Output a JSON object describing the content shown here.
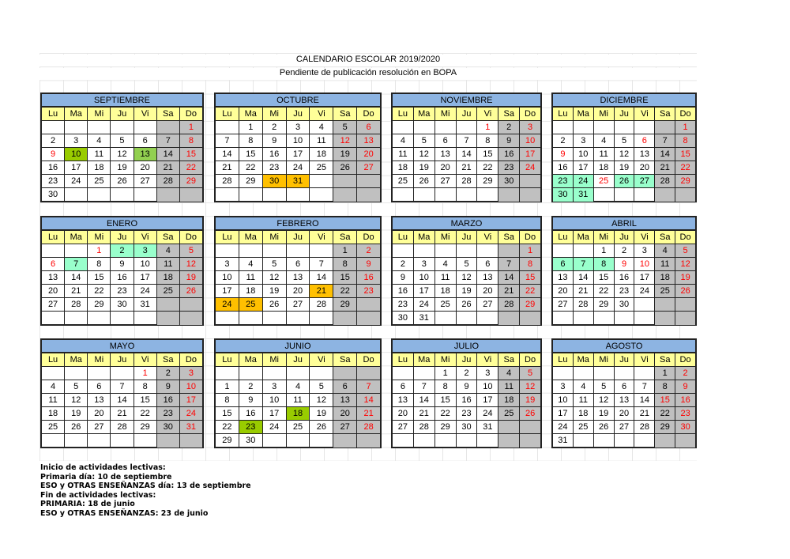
{
  "title": "CALENDARIO ESCOLAR 2019/2020",
  "subtitle": "Pendiente de publicación resolución en BOPA",
  "weekdays": [
    "Lu",
    "Ma",
    "Mi",
    "Ju",
    "Vi",
    "Sa",
    "Do"
  ],
  "colors": {
    "header": "#8db4e2",
    "weekday_row": "#ffff99",
    "weekend": "#c0c0c0",
    "holiday_text": "#ff0000",
    "start_primaria": "#99cc00",
    "start_eso": "#92d050",
    "vacation": "#99ffcc",
    "non_teaching": "#ffc000"
  },
  "months": [
    {
      "name": "SEPTIEMBRE",
      "offset": 6,
      "days": 30,
      "red": [
        1,
        8,
        9,
        15,
        22,
        29
      ],
      "marks": {
        "10": "start_primaria",
        "13": "start_eso"
      }
    },
    {
      "name": "OCTUBRE",
      "offset": 1,
      "days": 31,
      "red": [
        6,
        12,
        13,
        20,
        27
      ],
      "marks": {
        "30": "non_teaching",
        "31": "non_teaching"
      }
    },
    {
      "name": "NOVIEMBRE",
      "offset": 4,
      "days": 30,
      "red": [
        1,
        3,
        10,
        17,
        24
      ],
      "marks": {}
    },
    {
      "name": "DICIEMBRE",
      "offset": 6,
      "days": 31,
      "red": [
        1,
        6,
        8,
        9,
        15,
        22,
        25,
        29
      ],
      "marks": {
        "23": "vacation",
        "24": "vacation",
        "26": "vacation",
        "27": "vacation",
        "30": "vacation",
        "31": "vacation"
      }
    },
    {
      "name": "ENERO",
      "offset": 2,
      "days": 31,
      "red": [
        1,
        5,
        6,
        12,
        19,
        26
      ],
      "marks": {
        "2": "vacation",
        "3": "vacation",
        "7": "vacation"
      }
    },
    {
      "name": "FEBRERO",
      "offset": 5,
      "days": 29,
      "red": [
        2,
        9,
        16,
        23
      ],
      "marks": {
        "21": "non_teaching",
        "24": "non_teaching",
        "25": "non_teaching"
      }
    },
    {
      "name": "MARZO",
      "offset": 6,
      "days": 31,
      "red": [
        1,
        8,
        15,
        22,
        29
      ],
      "marks": {}
    },
    {
      "name": "ABRIL",
      "offset": 2,
      "days": 30,
      "red": [
        5,
        9,
        10,
        12,
        19,
        26
      ],
      "marks": {
        "6": "vacation",
        "7": "vacation",
        "8": "vacation"
      }
    },
    {
      "name": "MAYO",
      "offset": 4,
      "days": 31,
      "red": [
        1,
        3,
        10,
        17,
        24,
        31
      ],
      "marks": {}
    },
    {
      "name": "JUNIO",
      "offset": 7,
      "days": 30,
      "red": [
        7,
        14,
        21,
        28
      ],
      "marks": {
        "18": "start_primaria",
        "23": "start_primaria"
      }
    },
    {
      "name": "JULIO",
      "offset": 2,
      "days": 31,
      "red": [
        5,
        12,
        19,
        26
      ],
      "marks": {}
    },
    {
      "name": "AGOSTO",
      "offset": 5,
      "days": 31,
      "red": [
        2,
        9,
        15,
        16,
        23,
        30
      ],
      "marks": {}
    }
  ],
  "notes": [
    "Inicio de actividades lectivas:",
    "Primaria día: 10 de septiembre",
    "ESO y OTRAS ENSEÑANZAS día: 13 de septiembre",
    "Fin de actividades lectivas:",
    "PRIMARIA: 18 de junio",
    "ESO y OTRAS ENSEÑANZAS: 23 de junio"
  ]
}
